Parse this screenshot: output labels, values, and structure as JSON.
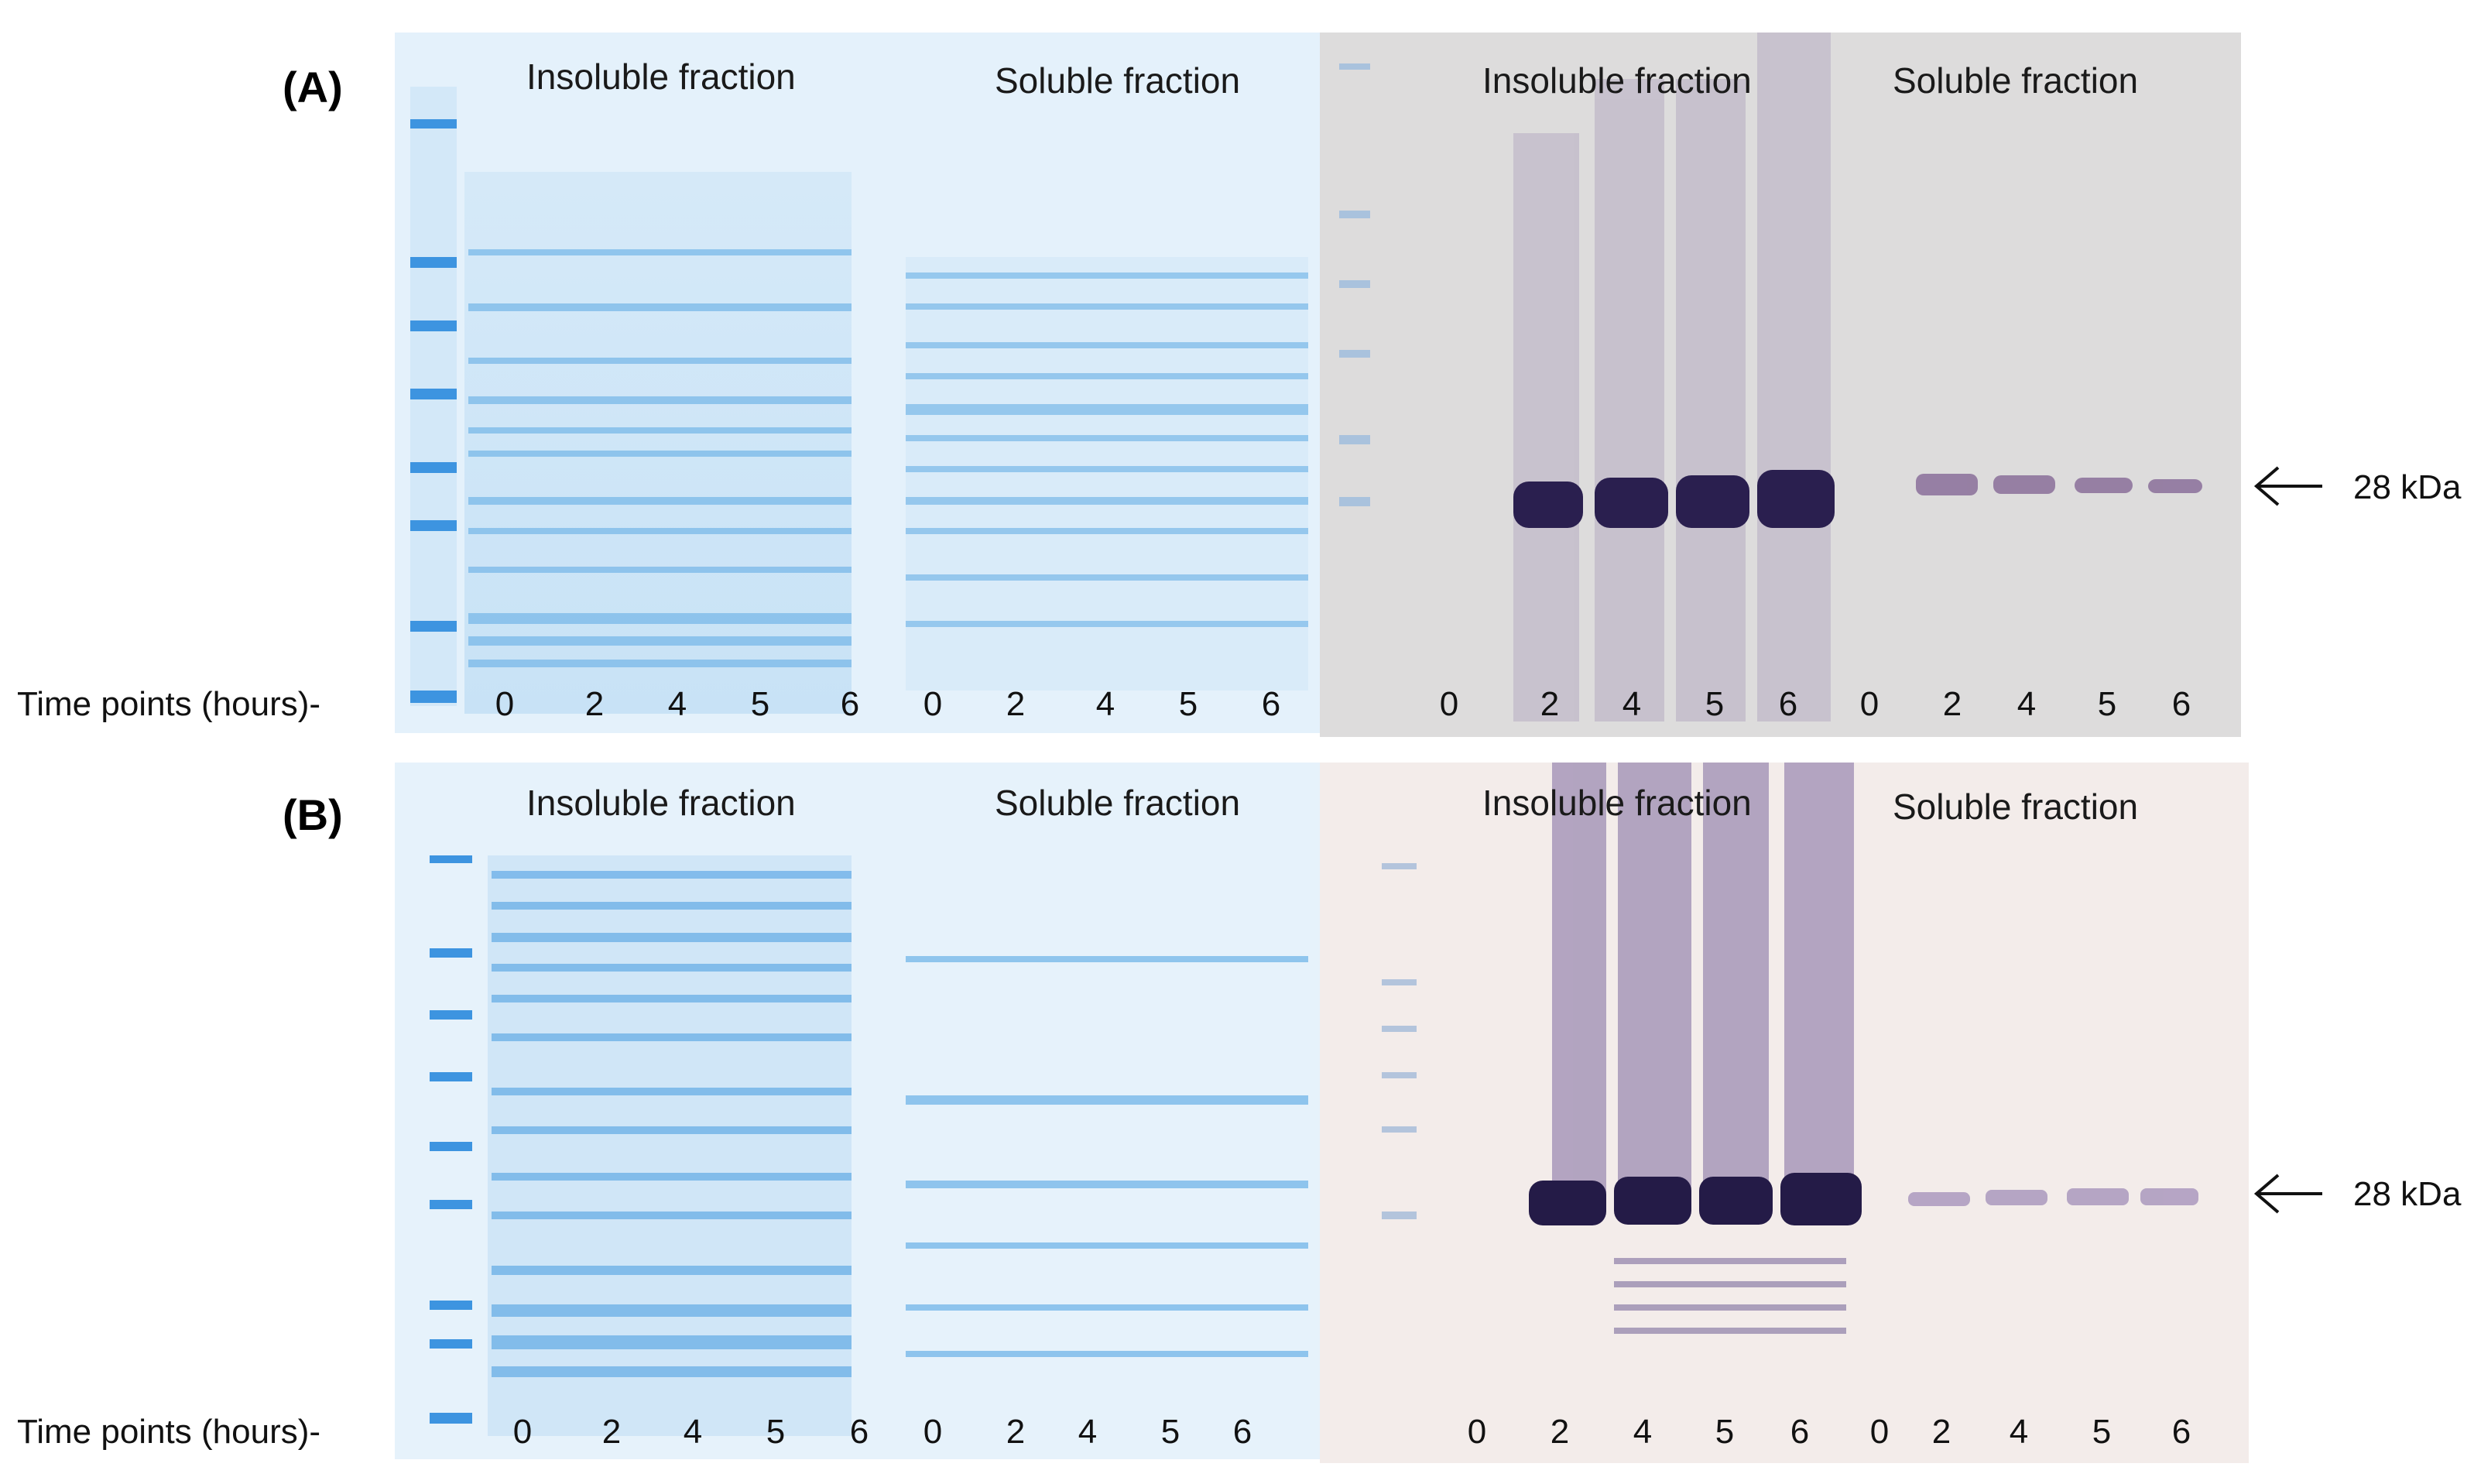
{
  "panels": [
    {
      "label": "(A)",
      "axis_label": "Time points (hours)-",
      "coomassie": {
        "insoluble_label": "Insoluble fraction",
        "soluble_label": "Soluble fraction",
        "lanes": [
          "0",
          "2",
          "4",
          "5",
          "6",
          "0",
          "2",
          "4",
          "5",
          "6"
        ]
      },
      "western": {
        "insoluble_label": "Insoluble fraction",
        "soluble_label": "Soluble fraction",
        "lanes": [
          "0",
          "2",
          "4",
          "5",
          "6",
          "0",
          "2",
          "4",
          "5",
          "6"
        ]
      },
      "marker_label": "28 kDa"
    },
    {
      "label": "(B)",
      "axis_label": "Time points (hours)-",
      "coomassie": {
        "insoluble_label": "Insoluble fraction",
        "soluble_label": "Soluble fraction",
        "lanes": [
          "0",
          "2",
          "4",
          "5",
          "6",
          "0",
          "2",
          "4",
          "5",
          "6"
        ]
      },
      "western": {
        "insoluble_label": "Insoluble fraction",
        "soluble_label": "Soluble fraction",
        "lanes": [
          "0",
          "2",
          "4",
          "5",
          "6",
          "0",
          "2",
          "4",
          "5",
          "6"
        ]
      },
      "marker_label": "28 kDa"
    }
  ],
  "colors": {
    "coomassie_bg": "#e6f2fb",
    "coomassie_band": "#5aa9e6",
    "western_bg_a": "#dcdcdc",
    "western_bg_b": "#f3ece9",
    "western_band": "#2b2050"
  }
}
